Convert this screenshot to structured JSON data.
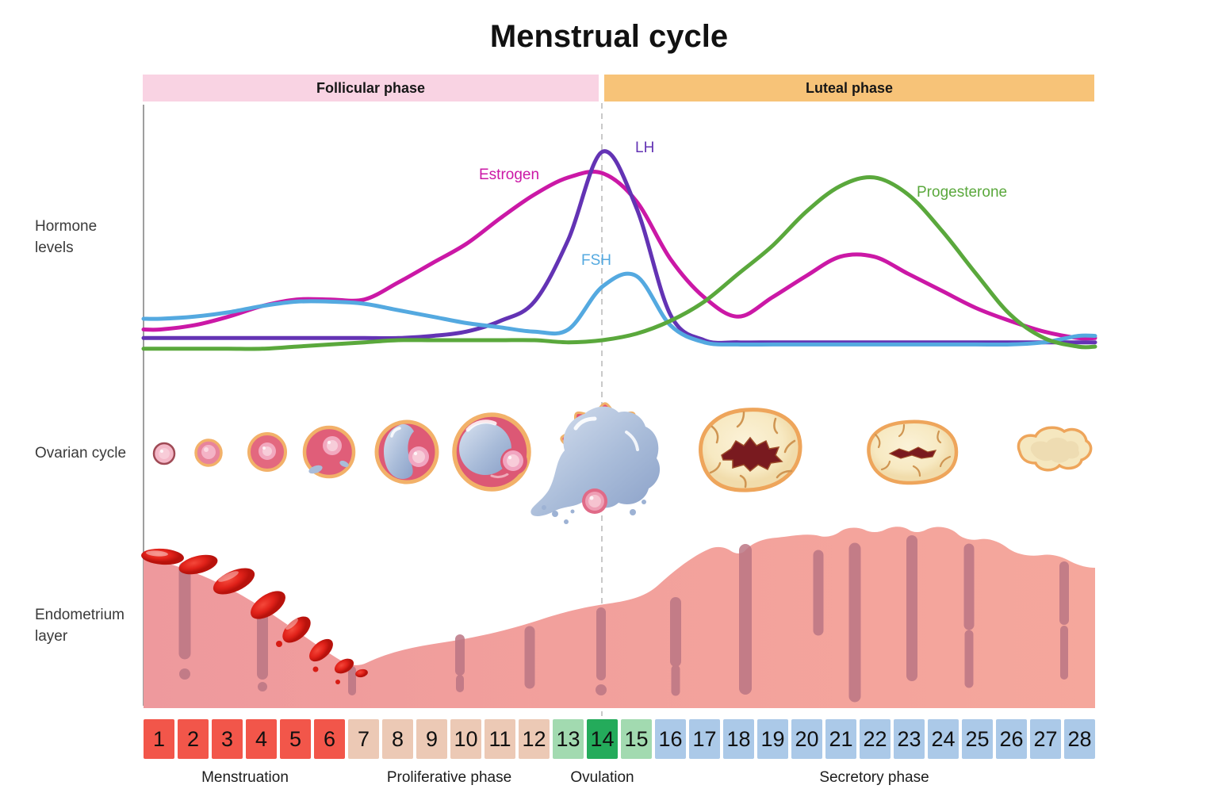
{
  "title": "Menstrual cycle",
  "phase_bars": [
    {
      "label": "Follicular phase",
      "color": "#f9d3e3"
    },
    {
      "label": "Luteal phase",
      "color": "#f7c378"
    }
  ],
  "row_labels": {
    "hormone": "Hormone levels",
    "ovarian": "Ovarian cycle",
    "endometrium": "Endometrium layer"
  },
  "chart_data": {
    "type": "line",
    "title": "Menstrual cycle hormone levels",
    "x": [
      1,
      2,
      3,
      4,
      5,
      6,
      7,
      8,
      9,
      10,
      11,
      12,
      13,
      14,
      15,
      16,
      17,
      18,
      19,
      20,
      21,
      22,
      23,
      24,
      25,
      26,
      27,
      28
    ],
    "x_range": [
      1,
      28
    ],
    "ylim": [
      0,
      110
    ],
    "grid": false,
    "legend_position": "inline-labels",
    "value_scale": "relative hormone level 0-100 (estimated from drawing)",
    "annotations": {
      "ovulation_dashed_line_day": 14
    },
    "series": [
      {
        "name": "Estrogen",
        "color": "#cb18a6",
        "values": [
          15,
          17,
          21,
          26,
          29,
          29,
          29,
          37,
          46,
          55,
          67,
          78,
          86,
          88,
          75,
          48,
          30,
          21,
          30,
          40,
          49,
          49,
          41,
          33,
          25,
          19,
          14,
          11
        ]
      },
      {
        "name": "LH",
        "color": "#6333b4",
        "values": [
          11,
          11,
          11,
          11,
          11,
          11,
          11,
          11,
          12,
          14,
          19,
          28,
          57,
          98,
          72,
          22,
          10,
          9,
          9,
          9,
          9,
          9,
          9,
          9,
          9,
          9,
          9,
          9
        ]
      },
      {
        "name": "FSH",
        "color": "#54a9e0",
        "values": [
          20,
          21,
          23,
          26,
          28,
          28,
          27,
          24,
          21,
          18,
          16,
          14,
          15,
          35,
          40,
          17,
          9,
          8,
          8,
          8,
          8,
          8,
          8,
          8,
          8,
          8,
          9,
          12
        ]
      },
      {
        "name": "Progesterone",
        "color": "#5aa83c",
        "values": [
          6,
          6,
          6,
          6,
          7,
          8,
          9,
          10,
          10,
          10,
          10,
          10,
          9,
          10,
          13,
          19,
          28,
          41,
          54,
          70,
          82,
          86,
          78,
          61,
          41,
          22,
          11,
          7
        ]
      }
    ]
  },
  "ovarian_cycle": {
    "stages": [
      "primordial-follicle",
      "primary-follicle",
      "secondary-follicle",
      "early-antral-follicle",
      "antral-follicle",
      "mature-graafian-follicle",
      "ovulation-ruptured-follicle",
      "corpus-luteum",
      "mature-corpus-luteum",
      "corpus-albicans"
    ]
  },
  "days": {
    "group_colors": {
      "menstruation": "#f2564a",
      "proliferative": "#ecc9b5",
      "ovulation": "#a2dab0",
      "ovulation_peak": "#24ab5b",
      "secretory": "#abc9e8"
    },
    "cells": [
      {
        "label": "1",
        "group": "menstruation"
      },
      {
        "label": "2",
        "group": "menstruation"
      },
      {
        "label": "3",
        "group": "menstruation"
      },
      {
        "label": "4",
        "group": "menstruation"
      },
      {
        "label": "5",
        "group": "menstruation"
      },
      {
        "label": "6",
        "group": "menstruation"
      },
      {
        "label": "7",
        "group": "proliferative"
      },
      {
        "label": "8",
        "group": "proliferative"
      },
      {
        "label": "9",
        "group": "proliferative"
      },
      {
        "label": "10",
        "group": "proliferative"
      },
      {
        "label": "11",
        "group": "proliferative"
      },
      {
        "label": "12",
        "group": "proliferative"
      },
      {
        "label": "13",
        "group": "ovulation"
      },
      {
        "label": "14",
        "group": "ovulation_peak"
      },
      {
        "label": "15",
        "group": "ovulation"
      },
      {
        "label": "16",
        "group": "secretory"
      },
      {
        "label": "17",
        "group": "secretory"
      },
      {
        "label": "18",
        "group": "secretory"
      },
      {
        "label": "19",
        "group": "secretory"
      },
      {
        "label": "20",
        "group": "secretory"
      },
      {
        "label": "21",
        "group": "secretory"
      },
      {
        "label": "22",
        "group": "secretory"
      },
      {
        "label": "23",
        "group": "secretory"
      },
      {
        "label": "24",
        "group": "secretory"
      },
      {
        "label": "25",
        "group": "secretory"
      },
      {
        "label": "26",
        "group": "secretory"
      },
      {
        "label": "27",
        "group": "secretory"
      },
      {
        "label": "28",
        "group": "secretory"
      }
    ]
  },
  "bottom_phases": [
    {
      "label": "Menstruation"
    },
    {
      "label": "Proliferative phase"
    },
    {
      "label": "Ovulation"
    },
    {
      "label": "Secretory phase"
    }
  ],
  "colors": {
    "endometrium": "#f2a09c",
    "endometrium_gland": "#bb7684",
    "blood": "#e8281c",
    "dashed_line": "#c9c9c9",
    "axis_line": "#9e9e9e",
    "follicle_rim": "#f2b169",
    "follicle_interior": "#e05e79",
    "antrum_fluid": "#9db2d4",
    "corpus_luteum_fill": "#f9edca",
    "corpus_luteum_core": "#791a1f"
  }
}
